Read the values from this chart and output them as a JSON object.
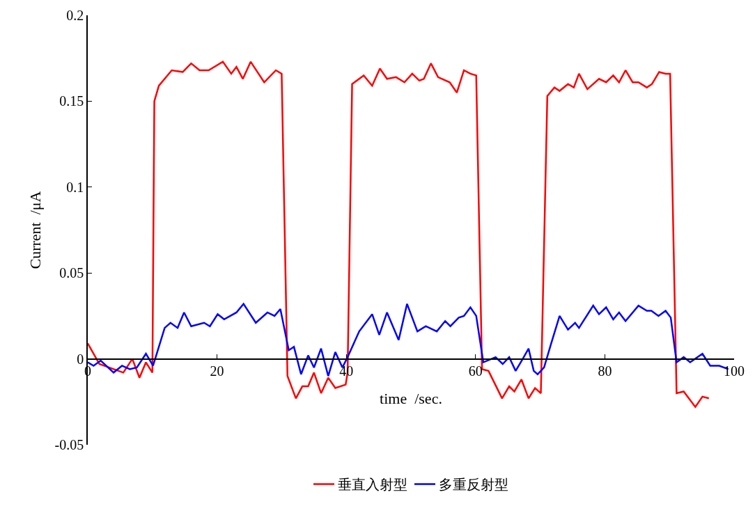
{
  "chart_data": {
    "type": "line",
    "xlabel": "time  /sec.",
    "ylabel": "Current  /μA",
    "xlim": [
      0,
      100
    ],
    "xticks": [
      0,
      20,
      40,
      60,
      80,
      100
    ],
    "ylim": [
      -0.05,
      0.2
    ],
    "yticks": [
      -0.05,
      0,
      0.05,
      0.1,
      0.15,
      0.2
    ],
    "grid": false,
    "legend": "bottom",
    "marker": "none",
    "line_style": "solid",
    "series": [
      {
        "name": "垂直入射型",
        "color": "#ff0000",
        "x": [
          0,
          1.8,
          5.5,
          6.9,
          8.0,
          9.0,
          10.0,
          10.3,
          11.0,
          13.0,
          14.7,
          16.0,
          17.3,
          18.7,
          20.9,
          22.2,
          23.0,
          24.0,
          25.2,
          27.3,
          29.1,
          30.0,
          30.9,
          32.2,
          33.2,
          34.1,
          35.0,
          36.1,
          37.2,
          38.3,
          39.9,
          40.2,
          40.9,
          42.7,
          44.0,
          45.2,
          46.3,
          47.7,
          49.0,
          50.2,
          51.3,
          52.0,
          53.1,
          54.2,
          56.0,
          57.1,
          58.2,
          59.2,
          60.1,
          61.0,
          62.0,
          64.1,
          65.2,
          66.0,
          67.1,
          68.2,
          69.2,
          70.1,
          71.1,
          72.2,
          73.0,
          74.3,
          75.2,
          76.0,
          77.3,
          79.1,
          80.2,
          81.3,
          82.2,
          83.2,
          84.3,
          85.2,
          86.5,
          87.3,
          88.4,
          89.4,
          90.1,
          91.1,
          92.2,
          94.0,
          95.1,
          96.1
        ],
        "values": [
          0.009,
          -0.003,
          -0.008,
          0.0,
          -0.011,
          -0.002,
          -0.008,
          0.15,
          0.159,
          0.168,
          0.167,
          0.172,
          0.168,
          0.168,
          0.173,
          0.166,
          0.17,
          0.163,
          0.173,
          0.161,
          0.168,
          0.166,
          -0.01,
          -0.023,
          -0.016,
          -0.016,
          -0.008,
          -0.02,
          -0.011,
          -0.017,
          -0.015,
          -0.008,
          0.16,
          0.165,
          0.159,
          0.169,
          0.163,
          0.164,
          0.161,
          0.166,
          0.162,
          0.163,
          0.172,
          0.164,
          0.161,
          0.155,
          0.168,
          0.166,
          0.165,
          -0.006,
          -0.007,
          -0.023,
          -0.016,
          -0.019,
          -0.012,
          -0.023,
          -0.017,
          -0.02,
          0.153,
          0.158,
          0.156,
          0.16,
          0.158,
          0.166,
          0.157,
          0.163,
          0.161,
          0.165,
          0.161,
          0.168,
          0.161,
          0.161,
          0.158,
          0.16,
          0.167,
          0.166,
          0.166,
          -0.02,
          -0.019,
          -0.028,
          -0.022,
          -0.023
        ]
      },
      {
        "name": "多重反射型",
        "color": "#0000ff",
        "x": [
          0,
          0.9,
          2.0,
          4.0,
          5.3,
          6.5,
          7.6,
          9.0,
          10.1,
          11.9,
          12.8,
          13.9,
          14.9,
          16.0,
          18.0,
          18.9,
          20.1,
          21.1,
          23.0,
          24.1,
          26.0,
          27.8,
          28.9,
          29.8,
          31.1,
          31.9,
          33.0,
          34.1,
          35.0,
          36.1,
          37.2,
          38.3,
          39.4,
          40.2,
          42.0,
          44.0,
          45.1,
          46.3,
          48.1,
          49.4,
          51.0,
          52.3,
          54.0,
          55.3,
          56.1,
          57.4,
          58.2,
          59.2,
          60.1,
          61.2,
          63.1,
          64.2,
          65.2,
          66.2,
          67.3,
          68.2,
          69.0,
          69.6,
          70.6,
          71.7,
          73.0,
          74.3,
          75.4,
          76.0,
          78.2,
          79.1,
          80.2,
          81.3,
          82.2,
          83.2,
          85.2,
          86.5,
          87.2,
          88.3,
          89.4,
          90.2,
          91.1,
          92.2,
          93.2,
          95.1,
          96.3,
          97.7,
          99.1
        ],
        "values": [
          -0.002,
          -0.004,
          -0.001,
          -0.008,
          -0.004,
          -0.006,
          -0.005,
          0.003,
          -0.004,
          0.018,
          0.021,
          0.018,
          0.027,
          0.019,
          0.021,
          0.019,
          0.026,
          0.023,
          0.027,
          0.032,
          0.021,
          0.027,
          0.025,
          0.029,
          0.005,
          0.007,
          -0.009,
          0.002,
          -0.005,
          0.006,
          -0.01,
          0.004,
          -0.005,
          0.001,
          0.016,
          0.026,
          0.014,
          0.027,
          0.011,
          0.032,
          0.016,
          0.019,
          0.016,
          0.022,
          0.019,
          0.024,
          0.025,
          0.03,
          0.025,
          -0.002,
          0.001,
          -0.003,
          0.001,
          -0.007,
          0.0,
          0.006,
          -0.007,
          -0.009,
          -0.005,
          0.009,
          0.025,
          0.017,
          0.021,
          0.018,
          0.031,
          0.026,
          0.03,
          0.023,
          0.027,
          0.022,
          0.031,
          0.028,
          0.028,
          0.025,
          0.028,
          0.024,
          -0.002,
          0.001,
          -0.002,
          0.003,
          -0.004,
          -0.004,
          -0.006
        ]
      }
    ]
  }
}
